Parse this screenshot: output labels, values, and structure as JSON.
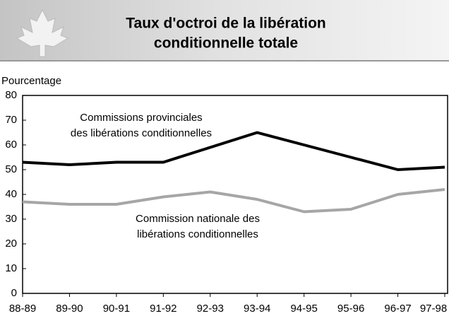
{
  "chart_data": {
    "type": "line",
    "title": [
      "Taux d'octroi de la libération",
      "conditionnelle totale"
    ],
    "y_label": "Pourcentage",
    "categories": [
      "88-89",
      "89-90",
      "90-91",
      "91-92",
      "92-93",
      "93-94",
      "94-95",
      "95-96",
      "96-97",
      "97-98"
    ],
    "series": [
      {
        "name": [
          "Commissions provinciales",
          "des libérations conditionnelles"
        ],
        "color": "#000000",
        "values": [
          53,
          52,
          53,
          53,
          59,
          65,
          60,
          55,
          50,
          51
        ]
      },
      {
        "name": [
          "Commission nationale des",
          "libérations conditionnelles"
        ],
        "color": "#a6a6a6",
        "values": [
          37,
          36,
          36,
          39,
          41,
          38,
          33,
          34,
          40,
          42
        ]
      }
    ],
    "ylim": [
      0,
      80
    ],
    "yticks": [
      0,
      10,
      20,
      30,
      40,
      50,
      60,
      70,
      80
    ],
    "grid": false
  }
}
